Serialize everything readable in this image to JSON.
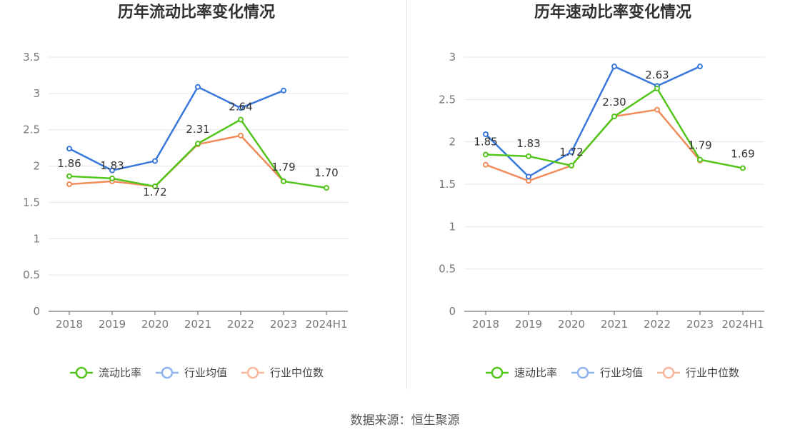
{
  "colors": {
    "primary": "#52c41a",
    "industry_avg": "#3a78db",
    "industry_median": "#f08c5a",
    "legend_avg": "#8fb3f0",
    "legend_median": "#f7b89c",
    "grid": "#e5e5ee",
    "axis": "#555555"
  },
  "source": "数据来源：恒生聚源",
  "chart_data": [
    {
      "type": "line",
      "title": "历年流动比率变化情况",
      "categories": [
        "2018",
        "2019",
        "2020",
        "2021",
        "2022",
        "2023",
        "2024H1"
      ],
      "ylim": [
        0,
        3.5
      ],
      "yticks": [
        "0",
        "0.5",
        "1",
        "1.5",
        "2",
        "2.5",
        "3",
        "3.5"
      ],
      "grid": true,
      "legend_position": "bottom",
      "series": [
        {
          "name": "流动比率",
          "values": [
            1.86,
            1.83,
            1.72,
            2.31,
            2.64,
            1.79,
            1.7
          ],
          "labels": [
            "1.86",
            "1.83",
            "1.72",
            "2.31",
            "2.64",
            "1.79",
            "1.70"
          ]
        },
        {
          "name": "行业均值",
          "values": [
            2.24,
            1.94,
            2.07,
            3.09,
            2.8,
            3.04,
            null
          ]
        },
        {
          "name": "行业中位数",
          "values": [
            1.75,
            1.79,
            1.72,
            2.3,
            2.42,
            1.79,
            null
          ]
        }
      ]
    },
    {
      "type": "line",
      "title": "历年速动比率变化情况",
      "categories": [
        "2018",
        "2019",
        "2020",
        "2021",
        "2022",
        "2023",
        "2024H1"
      ],
      "ylim": [
        0,
        3
      ],
      "yticks": [
        "0",
        "0.5",
        "1",
        "1.5",
        "2",
        "2.5",
        "3"
      ],
      "grid": true,
      "legend_position": "bottom",
      "series": [
        {
          "name": "速动比率",
          "values": [
            1.85,
            1.83,
            1.72,
            2.3,
            2.63,
            1.79,
            1.69
          ],
          "labels": [
            "1.85",
            "1.83",
            "1.72",
            "2.30",
            "2.63",
            "1.79",
            "1.69"
          ]
        },
        {
          "name": "行业均值",
          "values": [
            2.09,
            1.59,
            1.88,
            2.89,
            2.66,
            2.89,
            null
          ]
        },
        {
          "name": "行业中位数",
          "values": [
            1.73,
            1.54,
            1.72,
            2.3,
            2.38,
            1.78,
            null
          ]
        }
      ]
    }
  ]
}
